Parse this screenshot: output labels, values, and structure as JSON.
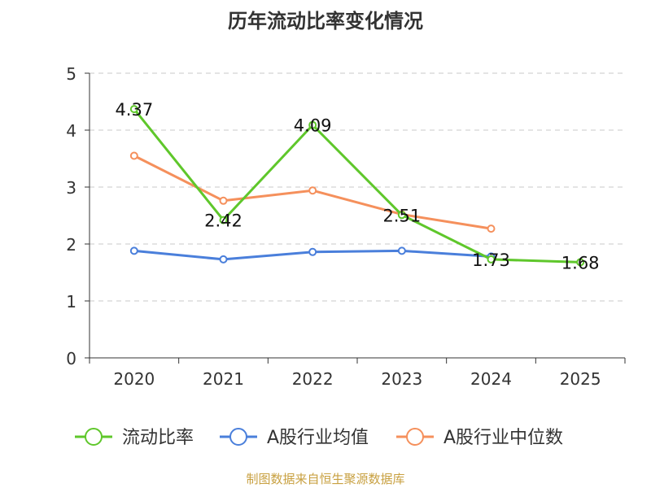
{
  "chart_data": {
    "type": "line",
    "title": "历年流动比率变化情况",
    "categories": [
      "2020",
      "2021",
      "2022",
      "2023",
      "2024",
      "2025"
    ],
    "ylim": [
      0,
      5
    ],
    "yticks": [
      "0",
      "1",
      "2",
      "3",
      "4",
      "5"
    ],
    "grid": true,
    "legend_position": "bottom",
    "series": [
      {
        "name": "流动比率",
        "color": "#5fc72b",
        "values": [
          4.37,
          2.42,
          4.09,
          2.51,
          1.73,
          1.68
        ],
        "labels": [
          "4.37",
          "2.42",
          "4.09",
          "2.51",
          "1.73",
          "1.68"
        ]
      },
      {
        "name": "A股行业均值",
        "color": "#4a7fdb",
        "values": [
          1.88,
          1.73,
          1.86,
          1.88,
          1.78,
          null
        ]
      },
      {
        "name": "A股行业中位数",
        "color": "#f5905c",
        "values": [
          3.55,
          2.76,
          2.94,
          2.52,
          2.27,
          null
        ]
      }
    ],
    "source": "制图数据来自恒生聚源数据库",
    "source_color": "#c8a040"
  }
}
